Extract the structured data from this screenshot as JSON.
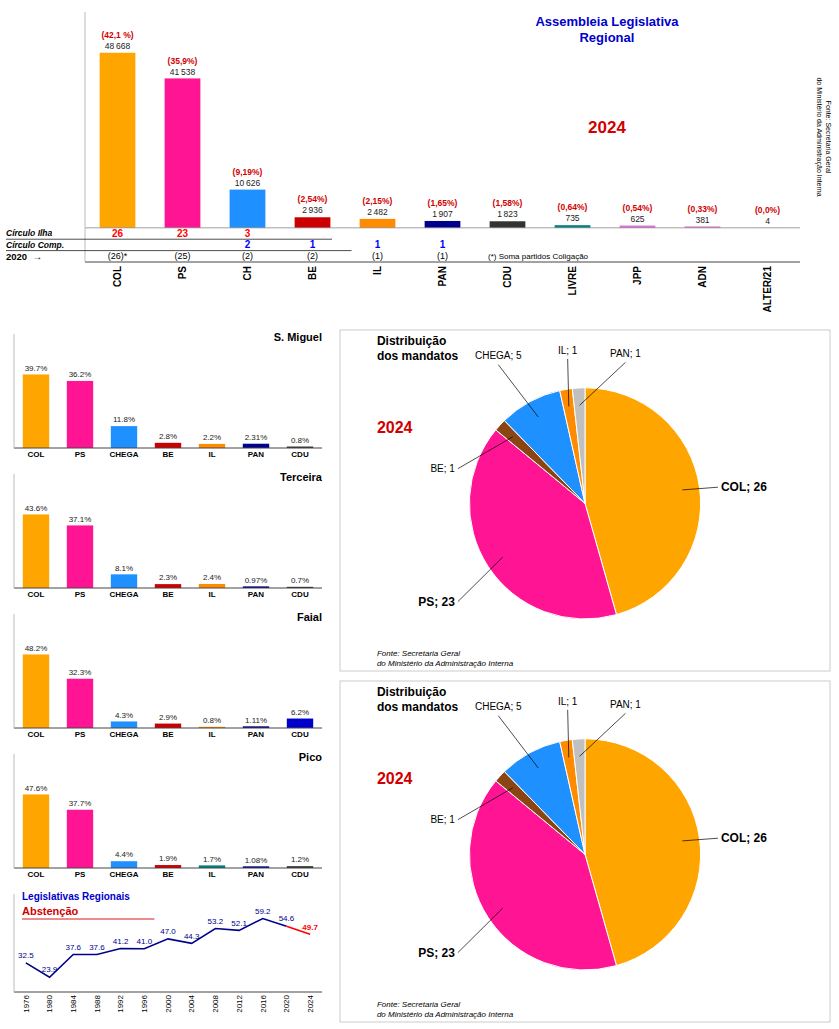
{
  "chart_data": [
    {
      "type": "bar",
      "title": "Assembleia Legislativa\nRegional",
      "subtitle": "2024",
      "source": "Fonte: Secretaria Geral\ndo Ministério da Administração Interna",
      "categories": [
        "COL",
        "PS",
        "CH",
        "BE",
        "IL",
        "PAN",
        "CDU",
        "LIVRE",
        "JPP",
        "ADN",
        "ALTER/21"
      ],
      "values": [
        48668,
        41538,
        10626,
        2936,
        2482,
        1907,
        1823,
        735,
        625,
        381,
        4
      ],
      "colors": [
        "#FFA500",
        "#FF1493",
        "#1E90FF",
        "#CC0000",
        "#FF8C00",
        "#00008B",
        "#333333",
        "#008080",
        "#DA70D6",
        "#DA70D6",
        "#DA70D6"
      ],
      "data_labels": true,
      "value_labels": [
        "48 668",
        "41 538",
        "10 626",
        "2 936",
        "2 482",
        "1 907",
        "1 823",
        "735",
        "625",
        "381",
        "4"
      ],
      "pct_labels": [
        "(42,1 %)",
        "(35,9%)",
        "(9,19%)",
        "(2,54%)",
        "(2,15%)",
        "(1,65%)",
        "(1,58%)",
        "(0,64%)",
        "(0,54%)",
        "(0,33%)",
        "(0,0%)"
      ],
      "ylim": [
        -9500,
        60000
      ],
      "tick_labels": "x",
      "table": [
        {
          "label": "Círculo Ilha",
          "color": "#FF0000",
          "cells": [
            "26",
            "23",
            "3",
            null,
            null,
            null,
            null,
            null,
            null,
            null,
            null
          ]
        },
        {
          "label": "Círculo Comp.",
          "color": "#0000FF",
          "cells": [
            null,
            null,
            "2",
            "1",
            "1",
            "1",
            null,
            null,
            null,
            null,
            null
          ]
        },
        {
          "label": "2020",
          "symbol": "→",
          "note": "(*) Soma partidos Coligação",
          "cells": [
            "(26)*",
            "(25)",
            "(2)",
            "(2)",
            "(1)",
            "(1)",
            null,
            null,
            null,
            null,
            null
          ]
        }
      ]
    },
    {
      "type": "bar",
      "title": "S. Miguel",
      "categories": [
        "COL",
        "PS",
        "CHEGA",
        "BE",
        "IL",
        "PAN",
        "CDU"
      ],
      "values": [
        39.7,
        36.2,
        11.8,
        2.8,
        2.2,
        2.31,
        0.8
      ],
      "colors": [
        "#FFA500",
        "#FF1493",
        "#1E90FF",
        "#CC0000",
        "#FF8C00",
        "#00008B",
        "#333333"
      ],
      "data_labels": true,
      "value_labels": [
        "39.7%",
        "36.2%",
        "11.8%",
        "2.8%",
        "2.2%",
        "2.31%",
        "0.8%"
      ],
      "ylim": [
        0,
        61.535
      ],
      "tick_labels": "x"
    },
    {
      "type": "bar",
      "title": "Terceira",
      "categories": [
        "COL",
        "PS",
        "CHEGA",
        "BE",
        "IL",
        "PAN",
        "CDU"
      ],
      "values": [
        43.6,
        37.1,
        8.1,
        2.3,
        2.4,
        0.97,
        0.7
      ],
      "colors": [
        "#FFA500",
        "#FF1493",
        "#1E90FF",
        "#CC0000",
        "#FF8C00",
        "#00008B",
        "#333333"
      ],
      "data_labels": true,
      "value_labels": [
        "43.6%",
        "37.1%",
        "8.1%",
        "2.3%",
        "2.4%",
        "0.97%",
        "0.7%"
      ],
      "ylim": [
        0,
        67.58
      ],
      "tick_labels": "x"
    },
    {
      "type": "bar",
      "title": "Faial",
      "categories": [
        "COL",
        "PS",
        "CHEGA",
        "BE",
        "IL",
        "PAN",
        "CDU"
      ],
      "values": [
        48.2,
        32.3,
        4.3,
        2.9,
        0.8,
        1.11,
        6.2
      ],
      "colors": [
        "#FFA500",
        "#FF1493",
        "#1E90FF",
        "#CC0000",
        "#FF8C00",
        "#00008B",
        "#0000CD"
      ],
      "data_labels": true,
      "value_labels": [
        "48.2%",
        "32.3%",
        "4.3%",
        "2.9%",
        "0.8%",
        "1.11%",
        "6.2%"
      ],
      "ylim": [
        0,
        74.71
      ],
      "tick_labels": "x"
    },
    {
      "type": "bar",
      "title": "Pico",
      "categories": [
        "COL",
        "PS",
        "CHEGA",
        "BE",
        "IL",
        "PAN",
        "CDU"
      ],
      "values": [
        47.6,
        37.7,
        4.4,
        1.9,
        1.7,
        1.08,
        1.2
      ],
      "colors": [
        "#FFA500",
        "#FF1493",
        "#1E90FF",
        "#CC0000",
        "#008080",
        "#00008B",
        "#333333"
      ],
      "data_labels": true,
      "value_labels": [
        "47.6%",
        "37.7%",
        "4.4%",
        "1.9%",
        "1.7%",
        "1.08%",
        "1.2%"
      ],
      "ylim": [
        0,
        73.78
      ],
      "tick_labels": "x"
    },
    {
      "type": "line",
      "title": "Legislativas Regionais",
      "subtitle": "Abstenção",
      "categories": [
        "1976",
        "1980",
        "1984",
        "1988",
        "1992",
        "1996",
        "2000",
        "2004",
        "2008",
        "2012",
        "2016",
        "2020",
        "2024"
      ],
      "values": [
        32.5,
        23.9,
        37.6,
        37.6,
        41.2,
        41.0,
        47.0,
        44.3,
        53.2,
        52.1,
        59.2,
        54.6,
        49.7
      ],
      "colors": [
        "#00008B",
        "#00008B",
        "#00008B",
        "#00008B",
        "#00008B",
        "#00008B",
        "#00008B",
        "#00008B",
        "#00008B",
        "#00008B",
        "#00008B",
        "#00008B",
        "#FF0000"
      ],
      "data_labels": true,
      "value_labels": [
        "32.5",
        "23.9",
        "37.6",
        "37.6",
        "41.2",
        "41.0",
        "47.0",
        "44.3",
        "53.2",
        "52.1",
        "59.2",
        "54.6",
        "49.7"
      ],
      "ylim": [
        15,
        74
      ],
      "tick_labels": "x"
    },
    {
      "type": "pie",
      "title": "Distribuição\ndos mandatos",
      "subtitle": "2024",
      "source": "Fonte: Secretaria Geral\ndo Ministério da Administração Interna",
      "values": [
        26,
        23,
        1,
        5,
        1,
        1
      ],
      "colors": [
        "#FFA500",
        "#FF1493",
        "#8B4513",
        "#1E90FF",
        "#FF8C00",
        "#C0C0C0"
      ],
      "data_labels": true,
      "value_labels": [
        "COL; 26",
        "PS; 23",
        "BE; 1",
        "CHEGA; 5",
        "IL; 1",
        "PAN; 1"
      ]
    },
    {
      "type": "pie",
      "title": "Distribuição\ndos mandatos",
      "subtitle": "2024",
      "source": "Fonte: Secretaria Geral\ndo Ministério da Administração Interna",
      "values": [
        26,
        23,
        1,
        5,
        1,
        1
      ],
      "colors": [
        "#FFA500",
        "#FF1493",
        "#8B4513",
        "#1E90FF",
        "#FF8C00",
        "#C0C0C0"
      ],
      "data_labels": true,
      "value_labels": [
        "COL; 26",
        "PS; 23",
        "BE; 1",
        "CHEGA; 5",
        "IL; 1",
        "PAN; 1"
      ]
    }
  ]
}
